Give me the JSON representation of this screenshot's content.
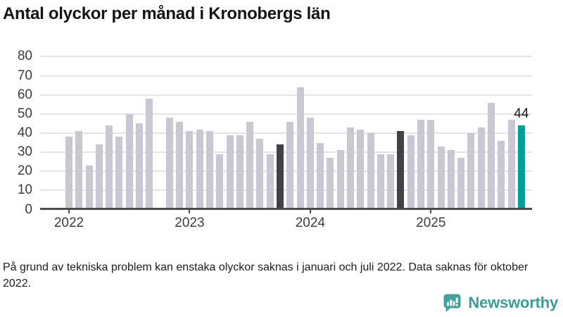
{
  "title": "Antal olyckor per månad i Kronobergs län",
  "footer": "På grund av tekniska problem kan enstaka olyckor saknas i januari och juli 2022. Data saknas för oktober 2022.",
  "brand": {
    "name": "Newsworthy",
    "color": "#3b9d98",
    "icon": "newsworthy-speech-bubble-barchart-icon"
  },
  "colors": {
    "bar_normal": "#c9c7d2",
    "bar_dark": "#424049",
    "bar_accent": "#00a09a",
    "axis": "#4b4b50",
    "grid": "#e3e2e7",
    "text": "#141414",
    "tick_label": "#3c3c3c"
  },
  "chart_data": {
    "type": "bar",
    "title": "Antal olyckor per månad i Kronobergs län",
    "xlabel": "",
    "ylabel": "",
    "ylim": [
      0,
      80
    ],
    "yticks": [
      0,
      10,
      20,
      30,
      40,
      50,
      60,
      70,
      80
    ],
    "grid": "horizontal",
    "legend": "none",
    "xticks": [
      {
        "label": "2022",
        "month_index": 0
      },
      {
        "label": "2023",
        "month_index": 12
      },
      {
        "label": "2024",
        "month_index": 24
      },
      {
        "label": "2025",
        "month_index": 36
      }
    ],
    "missing_months": [
      "2022-10"
    ],
    "annotation": {
      "text": "44",
      "month": "2025-10"
    },
    "points": [
      {
        "month": "2022-01",
        "value": 38,
        "style": "normal"
      },
      {
        "month": "2022-02",
        "value": 41,
        "style": "normal"
      },
      {
        "month": "2022-03",
        "value": 23,
        "style": "normal"
      },
      {
        "month": "2022-04",
        "value": 34,
        "style": "normal"
      },
      {
        "month": "2022-05",
        "value": 44,
        "style": "normal"
      },
      {
        "month": "2022-06",
        "value": 38,
        "style": "normal"
      },
      {
        "month": "2022-07",
        "value": 50,
        "style": "normal"
      },
      {
        "month": "2022-08",
        "value": 45,
        "style": "normal"
      },
      {
        "month": "2022-09",
        "value": 58,
        "style": "normal"
      },
      {
        "month": "2022-10",
        "value": null,
        "style": "missing"
      },
      {
        "month": "2022-11",
        "value": 48,
        "style": "normal"
      },
      {
        "month": "2022-12",
        "value": 46,
        "style": "normal"
      },
      {
        "month": "2023-01",
        "value": 41,
        "style": "normal"
      },
      {
        "month": "2023-02",
        "value": 42,
        "style": "normal"
      },
      {
        "month": "2023-03",
        "value": 41,
        "style": "normal"
      },
      {
        "month": "2023-04",
        "value": 29,
        "style": "normal"
      },
      {
        "month": "2023-05",
        "value": 39,
        "style": "normal"
      },
      {
        "month": "2023-06",
        "value": 39,
        "style": "normal"
      },
      {
        "month": "2023-07",
        "value": 46,
        "style": "normal"
      },
      {
        "month": "2023-08",
        "value": 37,
        "style": "normal"
      },
      {
        "month": "2023-09",
        "value": 29,
        "style": "normal"
      },
      {
        "month": "2023-10",
        "value": 34,
        "style": "dark"
      },
      {
        "month": "2023-11",
        "value": 46,
        "style": "normal"
      },
      {
        "month": "2023-12",
        "value": 64,
        "style": "normal"
      },
      {
        "month": "2024-01",
        "value": 48,
        "style": "normal"
      },
      {
        "month": "2024-02",
        "value": 35,
        "style": "normal"
      },
      {
        "month": "2024-03",
        "value": 27,
        "style": "normal"
      },
      {
        "month": "2024-04",
        "value": 31,
        "style": "normal"
      },
      {
        "month": "2024-05",
        "value": 43,
        "style": "normal"
      },
      {
        "month": "2024-06",
        "value": 42,
        "style": "normal"
      },
      {
        "month": "2024-07",
        "value": 40,
        "style": "normal"
      },
      {
        "month": "2024-08",
        "value": 29,
        "style": "normal"
      },
      {
        "month": "2024-09",
        "value": 29,
        "style": "normal"
      },
      {
        "month": "2024-10",
        "value": 41,
        "style": "dark"
      },
      {
        "month": "2024-11",
        "value": 39,
        "style": "normal"
      },
      {
        "month": "2024-12",
        "value": 47,
        "style": "normal"
      },
      {
        "month": "2025-01",
        "value": 47,
        "style": "normal"
      },
      {
        "month": "2025-02",
        "value": 33,
        "style": "normal"
      },
      {
        "month": "2025-03",
        "value": 31,
        "style": "normal"
      },
      {
        "month": "2025-04",
        "value": 27,
        "style": "normal"
      },
      {
        "month": "2025-05",
        "value": 40,
        "style": "normal"
      },
      {
        "month": "2025-06",
        "value": 43,
        "style": "normal"
      },
      {
        "month": "2025-07",
        "value": 56,
        "style": "normal"
      },
      {
        "month": "2025-08",
        "value": 36,
        "style": "normal"
      },
      {
        "month": "2025-09",
        "value": 47,
        "style": "normal"
      },
      {
        "month": "2025-10",
        "value": 44,
        "style": "accent"
      }
    ]
  }
}
